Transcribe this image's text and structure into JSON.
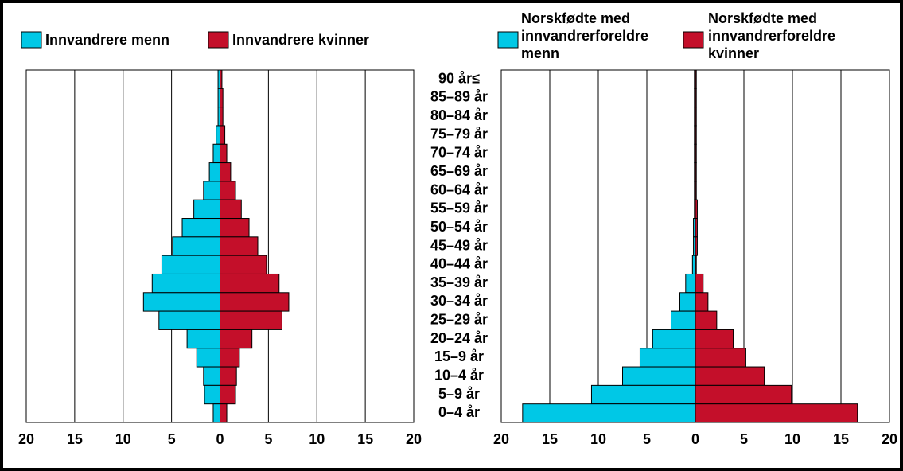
{
  "chart_data": [
    {
      "type": "pyramid",
      "categories": [
        "90 år≤",
        "85–89 år",
        "80–84 år",
        "75–79 år",
        "70–74 år",
        "65–69 år",
        "60–64 år",
        "55–59 år",
        "50–54 år",
        "45–49 år",
        "40–44 år",
        "35–39 år",
        "30–34 år",
        "25–29 år",
        "20–24 år",
        "15–9 år",
        "10–4 år",
        "5–9 år",
        "0–4 år"
      ],
      "series": [
        {
          "name": "Innvandrere menn",
          "color": "#00c8e6",
          "values": [
            -0.2,
            -0.2,
            -0.2,
            -0.4,
            -0.7,
            -1.1,
            -1.7,
            -2.7,
            -3.9,
            -4.9,
            -6.0,
            -7.0,
            -7.9,
            -6.3,
            -3.4,
            -2.4,
            -1.7,
            -1.6,
            -0.7
          ]
        },
        {
          "name": "Innvandrere kvinner",
          "color": "#c40f2a",
          "values": [
            0.2,
            0.3,
            0.3,
            0.5,
            0.7,
            1.1,
            1.6,
            2.2,
            3.0,
            3.9,
            4.8,
            6.1,
            7.1,
            6.4,
            3.3,
            2.0,
            1.7,
            1.6,
            0.7
          ]
        }
      ],
      "xlim": [
        -20,
        20
      ],
      "xticks": [
        {
          "value": -20,
          "label": "20"
        },
        {
          "value": -15,
          "label": "15"
        },
        {
          "value": -10,
          "label": "10"
        },
        {
          "value": -5,
          "label": "5"
        },
        0,
        5,
        10,
        15,
        20
      ],
      "grid": true
    },
    {
      "type": "pyramid",
      "series": [
        {
          "name": "Norskfødte med innvandrerforeldre menn",
          "color": "#00c8e6",
          "values": [
            -0.1,
            -0.1,
            -0.1,
            -0.1,
            -0.1,
            -0.1,
            -0.1,
            -0.1,
            -0.2,
            -0.2,
            -0.3,
            -1.0,
            -1.6,
            -2.5,
            -4.4,
            -5.7,
            -7.5,
            -10.7,
            -17.8
          ]
        },
        {
          "name": "Norskfødte med innvandrerforeldre kvinner",
          "color": "#c40f2a",
          "values": [
            0.1,
            0.1,
            0.1,
            0.1,
            0.1,
            0.1,
            0.1,
            0.2,
            0.2,
            0.2,
            0.1,
            0.8,
            1.3,
            2.2,
            3.9,
            5.2,
            7.1,
            9.9,
            16.7
          ]
        }
      ],
      "xlim": [
        -20,
        20
      ],
      "xticks": [
        {
          "value": -20,
          "label": "20"
        },
        {
          "value": -15,
          "label": "15"
        },
        {
          "value": -10,
          "label": "10"
        },
        {
          "value": -5,
          "label": "5"
        },
        0,
        5,
        10,
        15,
        20
      ],
      "grid": true
    }
  ]
}
